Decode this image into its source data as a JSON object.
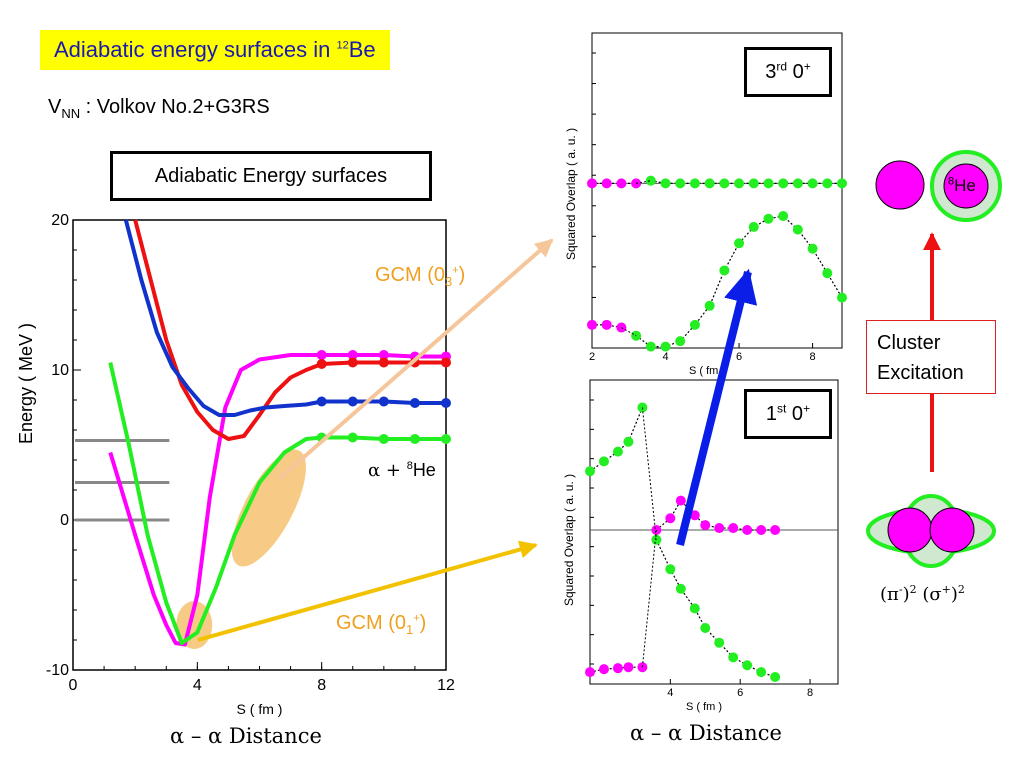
{
  "slide": {
    "title_prefix": "Adiabatic energy surfaces in ",
    "title_mass": "12",
    "title_element": "Be",
    "potential_prefix": "V",
    "potential_sub": "NN",
    "potential_text": " : Volkov No.2+G3RS",
    "main_box": "Adiabatic Energy surfaces",
    "alpha_he_label": "α + ",
    "alpha_he_mass": "8",
    "alpha_he_element": "He",
    "gcm3_label": "GCM (0",
    "gcm3_sub": "3",
    "gcm3_sup": "+",
    "gcm1_label": "GCM (0",
    "gcm1_sub": "1",
    "gcm1_sup": "+",
    "main_distance": "α – α Distance",
    "side_distance": "α – α Distance",
    "third_box_n": "3",
    "third_box_ord": "rd",
    "third_box_state": " 0",
    "third_box_sup": "+",
    "first_box_n": "1",
    "first_box_ord": "st",
    "first_box_state": " 0",
    "first_box_sup": "+",
    "cluster_line1": "Cluster",
    "cluster_line2": "Excitation",
    "he8_mass": "8",
    "he8_element": "He",
    "orbital_label": "(π",
    "orbital_pi_sup": "-",
    "orbital_mid": ")",
    "orbital_sq1": "2",
    "orbital_sigma": " (σ",
    "orbital_sigma_sup": "+",
    "orbital_end": ")",
    "orbital_sq2": "2"
  },
  "colors": {
    "magenta": "#ff00ff",
    "green": "#22ee22",
    "red": "#ee1111",
    "blue": "#1133cc",
    "orange": "#f0a020",
    "highlight": "#ffff00",
    "arrow_blue": "#0a1ee8",
    "grey_lines": "#888888"
  },
  "chart_data": [
    {
      "id": "main",
      "type": "line",
      "xlabel": "S ( fm )",
      "ylabel": "Energy ( MeV )",
      "xlim": [
        0,
        12
      ],
      "ylim": [
        -10,
        20
      ],
      "xticks": [
        "0",
        "4",
        "8",
        "12"
      ],
      "yticks": [
        "-10",
        "0",
        "10",
        "20"
      ],
      "threshold_levels": [
        5.3,
        2.5,
        0
      ],
      "series": [
        {
          "color": "magenta",
          "x": [
            1.2,
            2.0,
            2.6,
            3.0,
            3.3,
            3.6,
            4.0,
            4.4,
            4.9,
            5.4,
            6.0,
            7.0,
            8.0,
            9.0,
            10.0,
            11.0,
            12.0
          ],
          "y": [
            4.5,
            -1.0,
            -5.0,
            -7.0,
            -8.2,
            -8.3,
            -5.0,
            1.5,
            7.5,
            10.0,
            10.7,
            11.0,
            11.0,
            11.0,
            11.0,
            10.9,
            10.9
          ]
        },
        {
          "color": "green",
          "x": [
            1.2,
            1.8,
            2.4,
            3.0,
            3.5,
            4.0,
            4.6,
            5.2,
            6.0,
            6.8,
            7.5,
            8.0,
            9.0,
            10.0,
            11.0,
            12.0
          ],
          "y": [
            10.5,
            5.0,
            -1.0,
            -5.5,
            -8.2,
            -7.5,
            -4.5,
            -1.0,
            2.5,
            4.5,
            5.4,
            5.5,
            5.5,
            5.4,
            5.4,
            5.4
          ]
        },
        {
          "color": "red",
          "x": [
            2.0,
            2.5,
            3.0,
            3.5,
            4.0,
            4.5,
            5.0,
            5.5,
            6.0,
            6.5,
            7.0,
            7.5,
            8.0,
            9.0,
            10.0,
            11.0,
            12.0
          ],
          "y": [
            20,
            16,
            12,
            9.0,
            7.2,
            6.0,
            5.4,
            5.6,
            7.0,
            8.5,
            9.5,
            10.0,
            10.4,
            10.5,
            10.5,
            10.5,
            10.5
          ]
        },
        {
          "color": "blue",
          "x": [
            1.7,
            2.2,
            2.7,
            3.2,
            3.7,
            4.2,
            4.7,
            5.2,
            5.7,
            6.2,
            6.8,
            7.5,
            8.0,
            9.0,
            10.0,
            11.0,
            12.0
          ],
          "y": [
            20,
            16,
            12.5,
            10.2,
            8.8,
            7.6,
            7.0,
            7.0,
            7.3,
            7.5,
            7.6,
            7.7,
            7.9,
            7.9,
            7.9,
            7.8,
            7.8
          ]
        }
      ]
    },
    {
      "id": "third-zero-plus",
      "type": "scatter",
      "xlabel": "S ( fm )",
      "ylabel": "Squared Overlap ( a. u. )",
      "xlim": [
        2,
        8.8
      ],
      "xticks": [
        "2",
        "4",
        "6",
        "8"
      ],
      "series": [
        {
          "color": "magenta",
          "x": [
            2.0,
            2.4,
            2.8,
            3.2
          ],
          "y": [
            0.55,
            0.55,
            0.55,
            0.55
          ]
        },
        {
          "color": "green",
          "x": [
            3.6,
            4.0,
            4.4,
            4.8,
            5.2,
            5.6,
            6.0,
            6.4,
            6.8,
            7.2,
            7.6,
            8.0,
            8.4,
            8.8
          ],
          "y": [
            0.56,
            0.55,
            0.55,
            0.55,
            0.55,
            0.55,
            0.55,
            0.55,
            0.55,
            0.55,
            0.55,
            0.55,
            0.55,
            0.55
          ]
        },
        {
          "color": "magenta",
          "x": [
            2.0,
            2.4,
            2.8
          ],
          "y": [
            0.03,
            0.03,
            0.02
          ]
        },
        {
          "color": "green",
          "x": [
            3.2,
            3.6,
            4.0,
            4.4,
            4.8,
            5.2,
            5.6,
            6.0,
            6.4,
            6.8,
            7.2,
            7.6,
            8.0,
            8.4,
            8.8
          ],
          "y": [
            -0.01,
            -0.05,
            -0.05,
            -0.03,
            0.03,
            0.1,
            0.23,
            0.33,
            0.39,
            0.42,
            0.43,
            0.38,
            0.31,
            0.22,
            0.13
          ]
        }
      ]
    },
    {
      "id": "first-zero-plus",
      "type": "scatter",
      "xlabel": "S ( fm )",
      "ylabel": "Squared Overlap ( a. u. )",
      "xlim": [
        1.7,
        8.8
      ],
      "xticks": [
        "4",
        "6",
        "8"
      ],
      "series": [
        {
          "color": "green",
          "x": [
            1.7,
            2.1,
            2.5,
            2.8,
            3.2
          ],
          "y": [
            0.6,
            0.7,
            0.8,
            0.9,
            1.25
          ]
        },
        {
          "color": "magenta",
          "x": [
            3.6,
            4.0,
            4.3,
            4.7,
            5.0,
            5.4,
            5.8,
            6.2,
            6.6,
            7.0
          ],
          "y": [
            0.0,
            0.12,
            0.3,
            0.15,
            0.05,
            0.02,
            0.02,
            0.0,
            0.0,
            0.0
          ]
        },
        {
          "color": "magenta",
          "x": [
            1.7,
            2.1,
            2.5,
            2.8,
            3.2
          ],
          "y": [
            -1.45,
            -1.42,
            -1.41,
            -1.4,
            -1.4
          ]
        },
        {
          "color": "green",
          "x": [
            3.6,
            4.0,
            4.3,
            4.7,
            5.0,
            5.4,
            5.8,
            6.2,
            6.6,
            7.0
          ],
          "y": [
            -0.1,
            -0.4,
            -0.6,
            -0.8,
            -1.0,
            -1.15,
            -1.3,
            -1.38,
            -1.45,
            -1.5
          ]
        }
      ]
    }
  ]
}
